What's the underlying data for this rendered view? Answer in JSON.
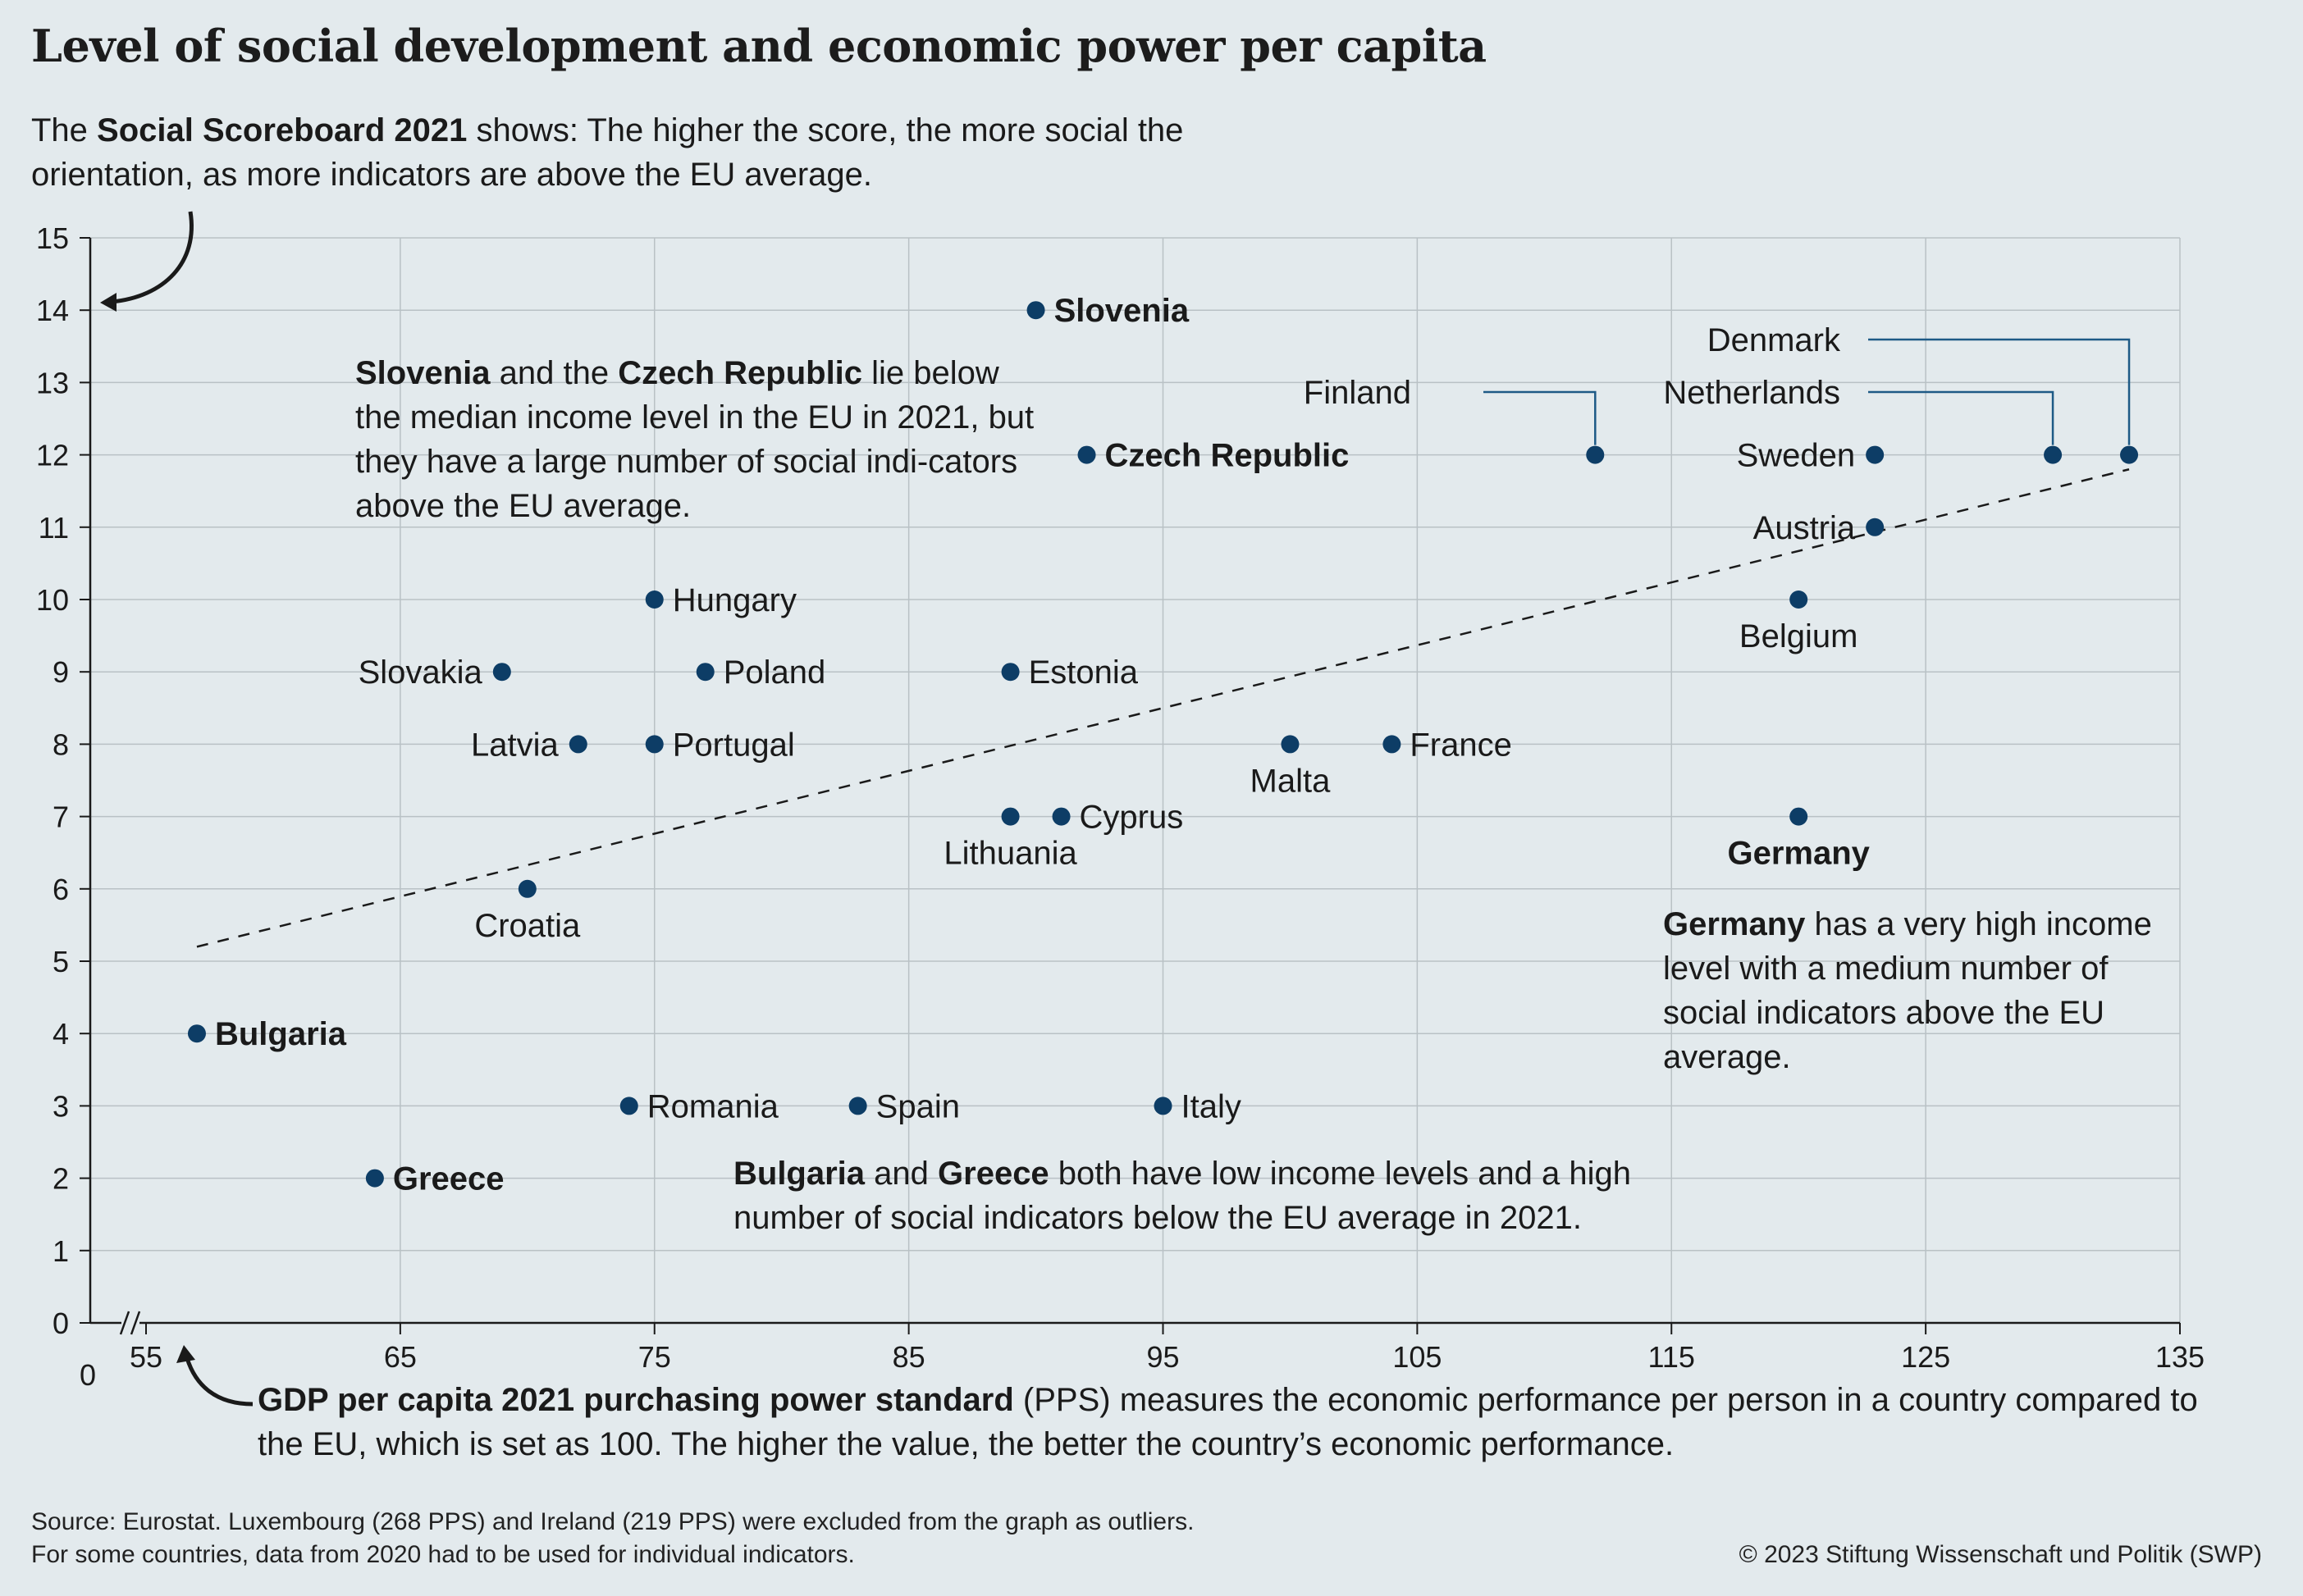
{
  "title": "Level of social development and economic power per capita",
  "intro": {
    "pre": "The ",
    "bold": "Social Scoreboard 2021",
    "post": " shows: The higher the score, the more social the orientation, as more indicators are above the EU average."
  },
  "notes": {
    "slovenia_czech": {
      "b1": "Slovenia",
      "t1": " and the ",
      "b2": "Czech Republic",
      "t2": " lie below the median income level in the EU in 2021, but they have a large number of social indi-cators above the EU average."
    },
    "germany": {
      "b1": "Germany",
      "t1": " has a very high income level with a medium number of social indicators above the EU average."
    },
    "bulgaria_greece": {
      "b1": "Bulgaria",
      "t1": " and ",
      "b2": "Greece",
      "t2": " both have low income levels and a high number of social indicators below the EU average in 2021."
    },
    "xaxis": {
      "bold": "GDP per capita 2021 purchasing power standard",
      "text": " (PPS) measures the economic performance per person in a country compared to the EU, which is set as 100. The higher the value, the better the country’s economic performance."
    }
  },
  "footer": {
    "line1": "Source: Eurostat. Luxembourg (268 PPS) and Ireland (219 PPS) were excluded from the graph as outliers.",
    "line2": "For some countries, data from 2020 had to be used for individual indicators.",
    "copyright": "© 2023 Stiftung Wissenschaft und Politik (SWP)"
  },
  "colors": {
    "background": "#e3eaed",
    "point": "#0d3d66",
    "grid": "#b9c1c5",
    "axis": "#1a1a1a",
    "leader": "#1e5a86"
  },
  "chart_data": {
    "type": "scatter",
    "title": "Level of social development and economic power per capita",
    "xlabel": "GDP per capita 2021 purchasing power standard (PPS)",
    "ylabel": "Social Scoreboard 2021",
    "xlim": [
      55,
      135
    ],
    "ylim": [
      0,
      15
    ],
    "x_axis_break": true,
    "x_origin_label": "0",
    "x_ticks": [
      55,
      65,
      75,
      85,
      95,
      105,
      115,
      125,
      135
    ],
    "y_ticks": [
      0,
      1,
      2,
      3,
      4,
      5,
      6,
      7,
      8,
      9,
      10,
      11,
      12,
      13,
      14,
      15
    ],
    "grid": true,
    "trendline": {
      "x": [
        57,
        133
      ],
      "y": [
        5.2,
        11.8
      ],
      "style": "dashed"
    },
    "points": [
      {
        "label": "Slovenia",
        "x": 90,
        "y": 14,
        "bold": true,
        "pos": "right"
      },
      {
        "label": "Czech Republic",
        "x": 92,
        "y": 12,
        "bold": true,
        "pos": "right"
      },
      {
        "label": "Hungary",
        "x": 75,
        "y": 10,
        "pos": "right"
      },
      {
        "label": "Slovakia",
        "x": 69,
        "y": 9,
        "pos": "left"
      },
      {
        "label": "Poland",
        "x": 77,
        "y": 9,
        "pos": "right"
      },
      {
        "label": "Estonia",
        "x": 89,
        "y": 9,
        "pos": "right"
      },
      {
        "label": "Latvia",
        "x": 72,
        "y": 8,
        "pos": "left"
      },
      {
        "label": "Portugal",
        "x": 75,
        "y": 8,
        "pos": "right"
      },
      {
        "label": "Malta",
        "x": 100,
        "y": 8,
        "pos": "below"
      },
      {
        "label": "France",
        "x": 104,
        "y": 8,
        "pos": "right"
      },
      {
        "label": "Lithuania",
        "x": 89,
        "y": 7,
        "pos": "below"
      },
      {
        "label": "Cyprus",
        "x": 91,
        "y": 7,
        "pos": "right"
      },
      {
        "label": "Croatia",
        "x": 70,
        "y": 6,
        "pos": "below"
      },
      {
        "label": "Bulgaria",
        "x": 57,
        "y": 4,
        "bold": true,
        "pos": "right"
      },
      {
        "label": "Romania",
        "x": 74,
        "y": 3,
        "pos": "right"
      },
      {
        "label": "Spain",
        "x": 83,
        "y": 3,
        "pos": "right"
      },
      {
        "label": "Italy",
        "x": 95,
        "y": 3,
        "pos": "right"
      },
      {
        "label": "Greece",
        "x": 64,
        "y": 2,
        "bold": true,
        "pos": "right"
      },
      {
        "label": "Finland",
        "x": 112,
        "y": 12,
        "pos": "leader"
      },
      {
        "label": "Sweden",
        "x": 123,
        "y": 12,
        "pos": "left"
      },
      {
        "label": "Netherlands",
        "x": 130,
        "y": 12,
        "pos": "leader"
      },
      {
        "label": "Denmark",
        "x": 133,
        "y": 12,
        "pos": "leader"
      },
      {
        "label": "Austria",
        "x": 123,
        "y": 11,
        "pos": "left"
      },
      {
        "label": "Belgium",
        "x": 120,
        "y": 10,
        "pos": "below"
      },
      {
        "label": "Germany",
        "x": 120,
        "y": 7,
        "bold": true,
        "pos": "below"
      }
    ]
  }
}
